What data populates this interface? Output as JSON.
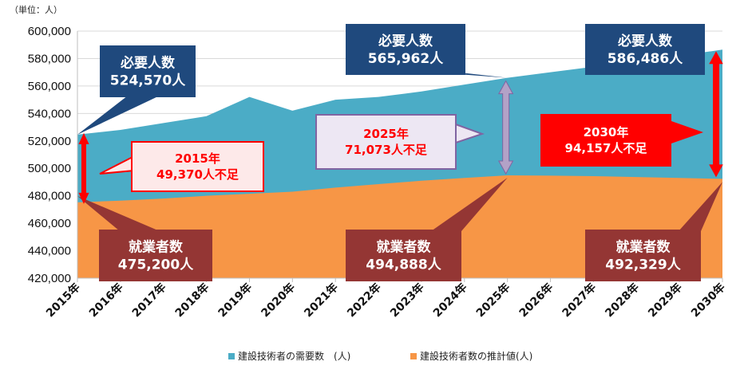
{
  "unit_label": "（単位：人）",
  "colors": {
    "demand": "#4bacc6",
    "supply": "#f79646",
    "demand_box": "#1f497d",
    "supply_box": "#943634",
    "gap_red": "#ff0000",
    "gap_purple": "#b3a2c7"
  },
  "chart_data": {
    "type": "area",
    "categories": [
      "2015年",
      "2016年",
      "2017年",
      "2018年",
      "2019年",
      "2020年",
      "2021年",
      "2022年",
      "2023年",
      "2024年",
      "2025年",
      "2026年",
      "2027年",
      "2028年",
      "2029年",
      "2030年"
    ],
    "ylim": [
      420000,
      600000
    ],
    "yticks": [
      "420,000",
      "440,000",
      "460,000",
      "480,000",
      "500,000",
      "520,000",
      "540,000",
      "560,000",
      "580,000",
      "600,000"
    ],
    "ytick_values": [
      420000,
      440000,
      460000,
      480000,
      500000,
      520000,
      540000,
      560000,
      580000,
      600000
    ],
    "series": [
      {
        "name": "建設技術者の需要数　(人)",
        "values": [
          524570,
          528000,
          533000,
          538000,
          552000,
          542000,
          550000,
          552000,
          556000,
          561000,
          565962,
          570000,
          574000,
          578000,
          582000,
          586486
        ]
      },
      {
        "name": "建設技術者数の推計値(人)",
        "values": [
          475200,
          476500,
          478000,
          480000,
          481500,
          483000,
          486000,
          488500,
          491000,
          493000,
          494888,
          494700,
          494300,
          493700,
          493000,
          492329
        ]
      }
    ],
    "annotations": {
      "demand": [
        {
          "title": "必要人数",
          "value": "524,570人"
        },
        {
          "title": "必要人数",
          "value": "565,962人"
        },
        {
          "title": "必要人数",
          "value": "586,486人"
        }
      ],
      "supply": [
        {
          "title": "就業者数",
          "value": "475,200人"
        },
        {
          "title": "就業者数",
          "value": "494,888人"
        },
        {
          "title": "就業者数",
          "value": "492,329人"
        }
      ],
      "gap": [
        {
          "year": "2015年",
          "text": "49,370人不足"
        },
        {
          "year": "2025年",
          "text": "71,073人不足"
        },
        {
          "year": "2030年",
          "text": "94,157人不足"
        }
      ]
    }
  }
}
